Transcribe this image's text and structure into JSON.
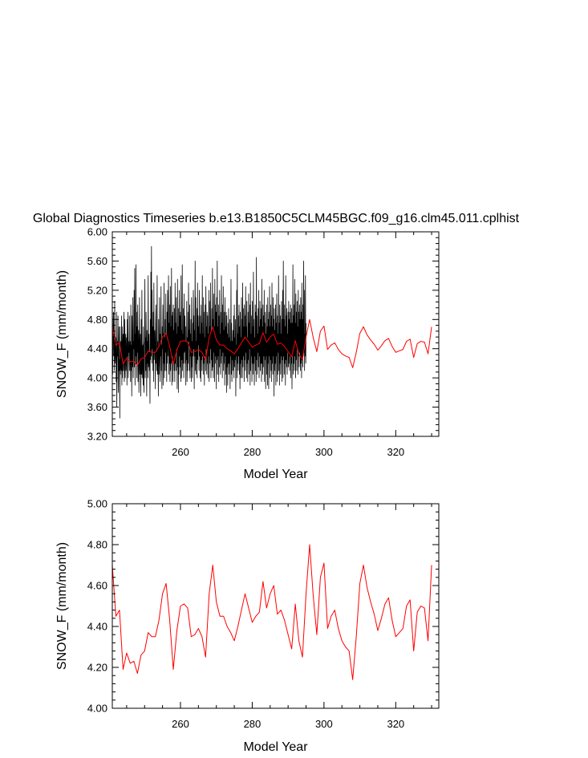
{
  "title": "Global Diagnostics Timeseries b.e13.B1850C5CLM45BGC.f09_g16.clm45.011.cplhist",
  "colors": {
    "monthly": "#000000",
    "annual": "#ff0000",
    "axis": "#000000"
  },
  "chart_data": [
    {
      "type": "line",
      "name": "monthly-panel",
      "xlabel": "Model Year",
      "ylabel": "SNOW_F (mm/month)",
      "xlim": [
        241,
        332
      ],
      "ylim": [
        3.2,
        6.0
      ],
      "xticks": [
        260,
        280,
        300,
        320
      ],
      "xtick_labels": [
        "260",
        "280",
        "300",
        "320"
      ],
      "yticks": [
        3.2,
        3.6,
        4.0,
        4.4,
        4.8,
        5.2,
        5.6,
        6.0
      ],
      "ytick_labels": [
        "3.20",
        "3.60",
        "4.00",
        "4.40",
        "4.80",
        "5.20",
        "5.60",
        "6.00"
      ],
      "series": [
        {
          "name": "monthly",
          "color": "#000000",
          "x_start": 241,
          "x_step": 0.0833333,
          "values": [
            4.2,
            4.05,
            4.3,
            4.8,
            4.9,
            4.3,
            4.6,
            4.1,
            5.05,
            4.4,
            4.2,
            4.5,
            4.55,
            3.95,
            4.9,
            3.6,
            4.1,
            4.5,
            4.3,
            4.85,
            3.8,
            4.15,
            4.7,
            4.1,
            4.25,
            3.45,
            4.7,
            4.05,
            4.5,
            4.15,
            4.1,
            4.85,
            3.9,
            4.7,
            4.0,
            4.4,
            4.6,
            4.1,
            4.5,
            4.9,
            3.95,
            4.2,
            4.8,
            4.0,
            4.4,
            4.6,
            4.1,
            4.3,
            4.55,
            3.9,
            4.8,
            4.3,
            4.9,
            4.0,
            4.2,
            4.5,
            4.35,
            4.85,
            4.1,
            4.35,
            4.5,
            3.95,
            5.0,
            4.1,
            4.45,
            3.75,
            4.85,
            4.3,
            4.15,
            5.1,
            4.0,
            4.5,
            4.4,
            5.2,
            4.15,
            5.5,
            3.9,
            4.6,
            4.3,
            5.55,
            4.2,
            4.9,
            4.0,
            4.7,
            4.35,
            5.0,
            3.95,
            4.3,
            4.65,
            3.8,
            4.4,
            5.1,
            4.05,
            4.25,
            4.6,
            3.75,
            4.15,
            4.8,
            4.05,
            5.2,
            4.0,
            4.3,
            4.45,
            3.9,
            4.7,
            4.1,
            3.8,
            4.45,
            4.5,
            5.35,
            4.0,
            4.55,
            4.1,
            4.9,
            4.3,
            3.75,
            4.65,
            4.2,
            4.5,
            4.0,
            5.4,
            4.15,
            4.25,
            4.6,
            4.1,
            4.35,
            3.65,
            4.8,
            4.25,
            5.45,
            4.3,
            5.8,
            4.2,
            5.2,
            4.4,
            4.7,
            4.1,
            4.9,
            3.95,
            5.3,
            4.25,
            4.5,
            4.65,
            4.3,
            3.85,
            4.75,
            5.0,
            4.2,
            4.35,
            4.1,
            5.4,
            4.05,
            4.5,
            4.25,
            3.75,
            4.8,
            4.05,
            4.4,
            5.1,
            4.2,
            3.95,
            4.6,
            4.3,
            5.25,
            4.1,
            4.45,
            3.85,
            4.7,
            4.4,
            5.0,
            3.9,
            4.6,
            4.2,
            5.3,
            4.0,
            4.55,
            4.1,
            4.8,
            4.35,
            5.15,
            4.1,
            4.6,
            3.95,
            4.9,
            4.2,
            5.2,
            4.5,
            4.3,
            5.4,
            4.05,
            4.75,
            4.2,
            5.0,
            3.95,
            5.25,
            4.1,
            4.7,
            4.2,
            5.5,
            3.9,
            4.85,
            4.3,
            4.9,
            3.95,
            5.0,
            4.2,
            4.65,
            4.1,
            4.95,
            3.95,
            5.3,
            4.2,
            4.75,
            4.1,
            5.1,
            4.4,
            4.6,
            3.85,
            5.35,
            4.15,
            4.7,
            3.8,
            4.95,
            4.05,
            5.2,
            4.3,
            4.85,
            4.15,
            4.9,
            3.95,
            5.4,
            4.0,
            4.65,
            4.25,
            5.55,
            4.1,
            4.6,
            4.2,
            4.95,
            4.0,
            5.15,
            4.35,
            4.4,
            4.85,
            4.2,
            4.7,
            3.9,
            4.5,
            4.25,
            5.05,
            3.95,
            4.55,
            4.1,
            4.9,
            4.2,
            5.3,
            4.5,
            4.65,
            4.1,
            5.0,
            4.0,
            4.6,
            4.3,
            4.8,
            3.95,
            5.1,
            4.15,
            4.5,
            4.0,
            4.75,
            4.3,
            5.2,
            4.4,
            4.85,
            3.85,
            4.65,
            4.3,
            5.6,
            4.1,
            5.1,
            4.05,
            4.5,
            4.2,
            4.95,
            4.0,
            5.3,
            4.25,
            4.85,
            4.45,
            4.7,
            4.1,
            5.2,
            4.3,
            4.6,
            4.0,
            4.85,
            3.95,
            5.0,
            4.25,
            4.75,
            4.1,
            5.4,
            4.3,
            4.6,
            4.05,
            5.1,
            4.2,
            4.9,
            3.9,
            4.55,
            4.3,
            5.0,
            4.1,
            5.25,
            4.4,
            4.7,
            4.05,
            4.9,
            4.2,
            4.85,
            4.0,
            4.6,
            4.3,
            5.2,
            3.95,
            5.05,
            4.2,
            4.7,
            4.4,
            5.3,
            4.0,
            4.65,
            4.25,
            4.95,
            4.1,
            5.5,
            4.15,
            4.8,
            4.0,
            5.15,
            4.35,
            4.7,
            3.95,
            5.35,
            4.2,
            5.0,
            4.3,
            4.9,
            3.85,
            5.1,
            4.25,
            5.6,
            4.05,
            4.7,
            4.3,
            5.0,
            3.95,
            4.85,
            4.15,
            5.2,
            4.4,
            4.6,
            4.05,
            4.9,
            4.2,
            5.4,
            4.3,
            4.75,
            4.0,
            5.0,
            4.35,
            5.25,
            4.1,
            4.65,
            4.2,
            4.9,
            3.9,
            5.1,
            4.3,
            4.7,
            4.05,
            4.9,
            3.8,
            4.85,
            4.15,
            4.6,
            3.9,
            4.75,
            4.2,
            4.95,
            4.05,
            4.55,
            4.2,
            4.8,
            3.85,
            4.5,
            4.3,
            5.35,
            4.05,
            4.75,
            3.95,
            4.5,
            4.25,
            4.65,
            4.1,
            4.4,
            4.85,
            4.0,
            5.0,
            4.15,
            4.55,
            4.25,
            4.8,
            3.75,
            4.45,
            4.3,
            5.2,
            4.0,
            5.55,
            4.2,
            4.6,
            4.1,
            4.85,
            4.3,
            5.0,
            4.05,
            4.7,
            3.85,
            4.9,
            4.2,
            4.55,
            4.0,
            5.1,
            4.25,
            4.8,
            4.0,
            5.3,
            4.15,
            4.95,
            4.3,
            4.7,
            3.95,
            5.0,
            4.25,
            4.85,
            4.1,
            5.25,
            4.35,
            4.7,
            4.0,
            5.05,
            4.2,
            4.55,
            3.95,
            4.9,
            4.25,
            5.15,
            4.05,
            4.75,
            4.4,
            5.0,
            3.9,
            5.3,
            4.1,
            4.6,
            4.3,
            4.85,
            3.95,
            5.05,
            4.2,
            4.7,
            4.05,
            5.45,
            4.2,
            4.8,
            3.9,
            4.55,
            4.3,
            5.0,
            4.1,
            4.9,
            3.95,
            5.65,
            4.25,
            4.85,
            4.05,
            4.6,
            4.35,
            4.95,
            4.15,
            5.2,
            4.0,
            4.7,
            4.3,
            5.05,
            4.1,
            4.8,
            4.2,
            4.95,
            3.95,
            5.35,
            4.2,
            4.7,
            4.05,
            5.0,
            4.15,
            4.85,
            4.3,
            5.2,
            3.95,
            4.75,
            4.25,
            4.9,
            3.85,
            4.6,
            4.3,
            5.0,
            4.05,
            4.7,
            3.9,
            5.1,
            4.2,
            4.8,
            3.85,
            4.9,
            4.3,
            5.25,
            4.0,
            4.7,
            4.25,
            5.0,
            4.1,
            4.85,
            3.95,
            5.3,
            4.2,
            4.7,
            4.05,
            5.1,
            4.3,
            4.8,
            3.75,
            4.95,
            4.1,
            4.65,
            4.2,
            5.0,
            3.9,
            4.75,
            4.3,
            5.15,
            3.95,
            4.85,
            4.05,
            4.6,
            4.35,
            5.4,
            4.1,
            4.75,
            3.9,
            5.0,
            4.2,
            4.85,
            4.05,
            4.6,
            4.3,
            5.05,
            3.95,
            4.8,
            4.25,
            5.2,
            4.0,
            5.6,
            4.3,
            4.8,
            4.05,
            5.0,
            4.2,
            4.7,
            3.9,
            5.4,
            4.25,
            4.85,
            4.15,
            4.95,
            4.05,
            4.6,
            4.35,
            4.9,
            4.15,
            5.05,
            4.2,
            4.8,
            4.1,
            4.9,
            4.3,
            5.0,
            4.0,
            4.75,
            4.2,
            4.95,
            3.85,
            4.75,
            4.3,
            5.55,
            4.05,
            4.85,
            4.2,
            5.0,
            4.1,
            5.35,
            4.3,
            4.75,
            4.0,
            5.15,
            4.25,
            4.9,
            4.1,
            5.05,
            4.4,
            4.7,
            4.05,
            5.2,
            4.3,
            4.9,
            4.15,
            5.0,
            4.35,
            4.8,
            4.1,
            5.1,
            4.2,
            4.9,
            4.0,
            5.3,
            4.25,
            4.8,
            4.15,
            5.0,
            4.3,
            5.6,
            4.35,
            5.2,
            4.1,
            4.6,
            4.3,
            5.4,
            4.2,
            4.75
          ]
        },
        {
          "name": "annual-mean",
          "color": "#ff0000",
          "x_start": 241,
          "x_step": 1,
          "values": [
            4.7,
            4.45,
            4.48,
            4.19,
            4.27,
            4.22,
            4.23,
            4.17,
            4.26,
            4.28,
            4.37,
            4.35,
            4.35,
            4.43,
            4.56,
            4.61,
            4.43,
            4.19,
            4.38,
            4.5,
            4.51,
            4.49,
            4.35,
            4.36,
            4.39,
            4.35,
            4.25,
            4.56,
            4.7,
            4.52,
            4.45,
            4.45,
            4.4,
            4.37,
            4.33,
            4.4,
            4.48,
            4.56,
            4.49,
            4.42,
            4.45,
            4.47,
            4.62,
            4.49,
            4.56,
            4.6,
            4.46,
            4.48,
            4.43,
            4.36,
            4.29,
            4.51,
            4.33,
            4.25,
            4.56,
            4.8,
            4.55,
            4.36,
            4.64,
            4.71,
            4.39,
            4.45,
            4.48,
            4.39,
            4.33,
            4.3,
            4.28,
            4.14,
            4.35,
            4.61,
            4.7,
            4.59,
            4.52,
            4.46,
            4.38,
            4.44,
            4.51,
            4.54,
            4.43,
            4.35,
            4.37,
            4.39,
            4.5,
            4.53,
            4.28,
            4.47,
            4.5,
            4.49,
            4.33,
            4.7
          ]
        }
      ]
    },
    {
      "type": "line",
      "name": "annual-panel",
      "xlabel": "Model Year",
      "ylabel": "SNOW_F (mm/month)",
      "xlim": [
        241,
        332
      ],
      "ylim": [
        4.0,
        5.0
      ],
      "xticks": [
        260,
        280,
        300,
        320
      ],
      "xtick_labels": [
        "260",
        "280",
        "300",
        "320"
      ],
      "yticks": [
        4.0,
        4.2,
        4.4,
        4.6,
        4.8,
        5.0
      ],
      "ytick_labels": [
        "4.00",
        "4.20",
        "4.40",
        "4.60",
        "4.80",
        "5.00"
      ],
      "series": [
        {
          "name": "annual-mean",
          "color": "#ff0000",
          "x_start": 241,
          "x_step": 1,
          "values": [
            4.7,
            4.45,
            4.48,
            4.19,
            4.27,
            4.22,
            4.23,
            4.17,
            4.26,
            4.28,
            4.37,
            4.35,
            4.35,
            4.43,
            4.56,
            4.61,
            4.43,
            4.19,
            4.38,
            4.5,
            4.51,
            4.49,
            4.35,
            4.36,
            4.39,
            4.35,
            4.25,
            4.56,
            4.7,
            4.52,
            4.45,
            4.45,
            4.4,
            4.37,
            4.33,
            4.4,
            4.48,
            4.56,
            4.49,
            4.42,
            4.45,
            4.47,
            4.62,
            4.49,
            4.56,
            4.6,
            4.46,
            4.48,
            4.43,
            4.36,
            4.29,
            4.51,
            4.33,
            4.25,
            4.56,
            4.8,
            4.55,
            4.36,
            4.64,
            4.71,
            4.39,
            4.45,
            4.48,
            4.39,
            4.33,
            4.3,
            4.28,
            4.14,
            4.35,
            4.61,
            4.7,
            4.59,
            4.52,
            4.46,
            4.38,
            4.44,
            4.51,
            4.54,
            4.43,
            4.35,
            4.37,
            4.39,
            4.5,
            4.53,
            4.28,
            4.47,
            4.5,
            4.49,
            4.33,
            4.7
          ]
        }
      ]
    }
  ]
}
